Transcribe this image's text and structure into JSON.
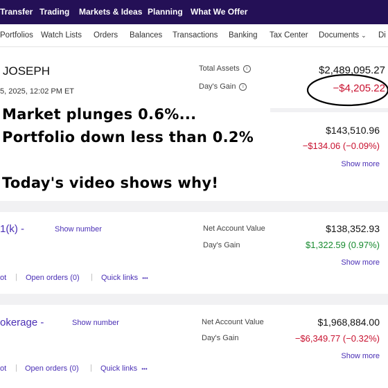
{
  "topnav": [
    "Transfer",
    "Trading",
    "Markets & Ideas",
    "Planning",
    "What We Offer"
  ],
  "subnav": [
    "Portfolios",
    "Watch Lists",
    "Orders",
    "Balances",
    "Transactions",
    "Banking",
    "Tax Center",
    "Documents",
    "Di"
  ],
  "summary": {
    "name": "JOSEPH",
    "timestamp": "5, 2025, 12:02 PM ET",
    "total_assets_label": "Total Assets",
    "total_assets_value": "$2,489,095.27",
    "days_gain_label": "Day's Gain",
    "days_gain_value": "−$4,205.22"
  },
  "overlay": {
    "line1": "Market plunges 0.6%...",
    "line2": "Portfolio down less than 0.2%",
    "line3": "Today's video shows why!"
  },
  "account_partial": {
    "value": "$143,510.96",
    "gain": "−$134.06 (−0.09%)",
    "show_more": "Show more"
  },
  "account_401k": {
    "name": "1(k) -",
    "show_number": "Show number",
    "nav_label": "Net Account Value",
    "nav_value": "$138,352.93",
    "gain_label": "Day's Gain",
    "gain_value": "$1,322.59 (0.97%)",
    "show_more": "Show more",
    "links": [
      "ot",
      "Open orders (0)",
      "Quick links"
    ],
    "ellipsis": "•••"
  },
  "account_brokerage": {
    "name": "okerage -",
    "show_number": "Show number",
    "nav_label": "Net Account Value",
    "nav_value": "$1,968,884.00",
    "gain_label": "Day's Gain",
    "gain_value": "−$6,349.77 (−0.32%)",
    "show_more": "Show more",
    "links": [
      "ot",
      "Open orders (0)",
      "Quick links"
    ],
    "ellipsis": "•••"
  },
  "colors": {
    "nav_bg": "#241056",
    "link": "#4a2fb5",
    "negative": "#c8102e",
    "positive": "#168a2e"
  },
  "icons": {
    "info": "info-icon",
    "chevron": "chevron-down-icon"
  }
}
